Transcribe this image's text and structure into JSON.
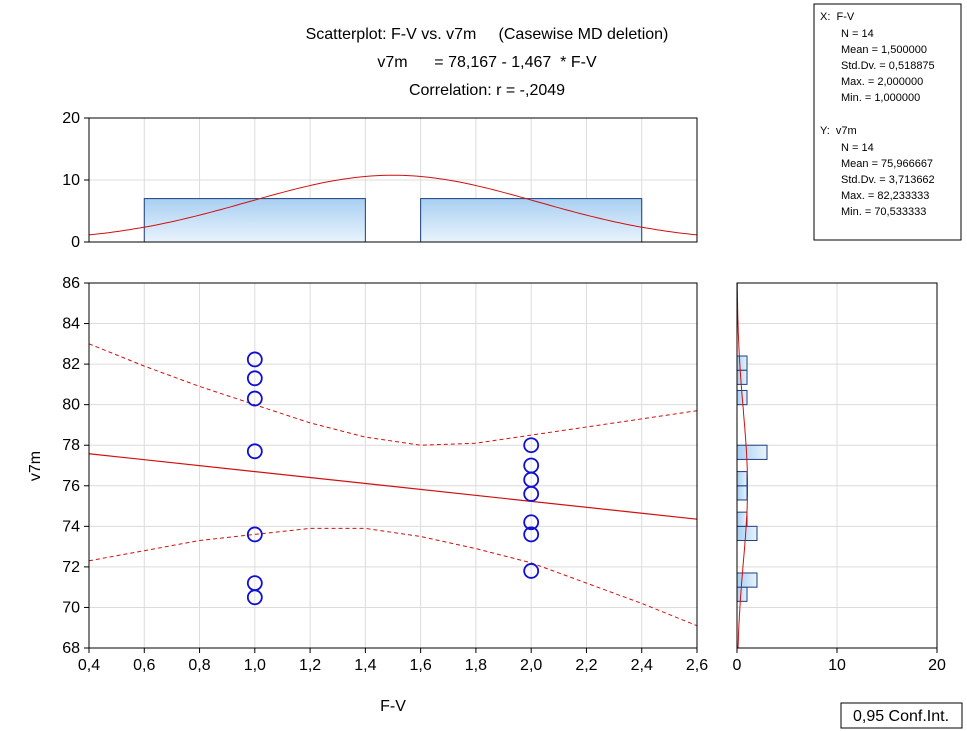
{
  "colors": {
    "point": "#1010d0",
    "line": "#d01010",
    "bar_fill_top": "#a9cff2",
    "bar_fill_bottom": "#e9f3fc",
    "bar_stroke": "#1a3f80",
    "grid": "#dcdcdc",
    "frame": "#000000"
  },
  "chart_data": {
    "type": "scatter",
    "title": "Scatterplot: F-V vs. v7m     (Casewise MD deletion)",
    "subtitle": "v7m      = 78,167 - 1,467  * F-V",
    "correlation": "Correlation: r = -,2049",
    "xlabel": "F-V",
    "ylabel": "v7m",
    "xlim": [
      0.4,
      2.6
    ],
    "ylim": [
      68,
      86
    ],
    "grid": true,
    "x_ticks": [
      "0,4",
      "0,6",
      "0,8",
      "1,0",
      "1,2",
      "1,4",
      "1,6",
      "1,8",
      "2,0",
      "2,2",
      "2,4",
      "2,6"
    ],
    "y_ticks": [
      "68",
      "70",
      "72",
      "74",
      "76",
      "78",
      "80",
      "82",
      "84",
      "86"
    ],
    "regression": {
      "intercept": 78.167,
      "slope": -1.467
    },
    "confidence_label": "0,95 Conf.Int.",
    "points": [
      {
        "x": 1.0,
        "y": 82.23
      },
      {
        "x": 1.0,
        "y": 81.3
      },
      {
        "x": 1.0,
        "y": 80.3
      },
      {
        "x": 1.0,
        "y": 77.7
      },
      {
        "x": 1.0,
        "y": 73.6
      },
      {
        "x": 1.0,
        "y": 71.2
      },
      {
        "x": 1.0,
        "y": 70.5
      },
      {
        "x": 2.0,
        "y": 78.0
      },
      {
        "x": 2.0,
        "y": 77.0
      },
      {
        "x": 2.0,
        "y": 76.3
      },
      {
        "x": 2.0,
        "y": 75.6
      },
      {
        "x": 2.0,
        "y": 74.2
      },
      {
        "x": 2.0,
        "y": 73.6
      },
      {
        "x": 2.0,
        "y": 71.8
      }
    ],
    "conf_upper": [
      {
        "x": 0.4,
        "y": 83.0
      },
      {
        "x": 0.6,
        "y": 81.9
      },
      {
        "x": 0.8,
        "y": 80.9
      },
      {
        "x": 1.0,
        "y": 80.0
      },
      {
        "x": 1.2,
        "y": 79.1
      },
      {
        "x": 1.4,
        "y": 78.4
      },
      {
        "x": 1.6,
        "y": 78.0
      },
      {
        "x": 1.8,
        "y": 78.1
      },
      {
        "x": 2.0,
        "y": 78.5
      },
      {
        "x": 2.2,
        "y": 78.9
      },
      {
        "x": 2.4,
        "y": 79.3
      },
      {
        "x": 2.6,
        "y": 79.7
      }
    ],
    "conf_lower": [
      {
        "x": 0.4,
        "y": 72.3
      },
      {
        "x": 0.6,
        "y": 72.8
      },
      {
        "x": 0.8,
        "y": 73.3
      },
      {
        "x": 1.0,
        "y": 73.6
      },
      {
        "x": 1.2,
        "y": 73.9
      },
      {
        "x": 1.4,
        "y": 73.9
      },
      {
        "x": 1.6,
        "y": 73.5
      },
      {
        "x": 1.8,
        "y": 72.9
      },
      {
        "x": 2.0,
        "y": 72.2
      },
      {
        "x": 2.2,
        "y": 71.2
      },
      {
        "x": 2.4,
        "y": 70.2
      },
      {
        "x": 2.6,
        "y": 69.1
      }
    ],
    "top_histogram": {
      "ylim": [
        0,
        20
      ],
      "y_ticks": [
        "0",
        "10",
        "20"
      ],
      "bins": [
        {
          "x0": 0.6,
          "x1": 1.4,
          "count": 7
        },
        {
          "x0": 1.6,
          "x1": 2.4,
          "count": 7
        }
      ],
      "normal": {
        "mean": 1.5,
        "sd": 0.518875,
        "n": 14,
        "binwidth": 1.0
      }
    },
    "right_histogram": {
      "xlim": [
        0,
        20
      ],
      "x_ticks": [
        "0",
        "10",
        "20"
      ],
      "bins": [
        {
          "y0": 70.3,
          "y1": 71.0,
          "count": 1
        },
        {
          "y0": 71.0,
          "y1": 71.7,
          "count": 2
        },
        {
          "y0": 73.3,
          "y1": 74.0,
          "count": 2
        },
        {
          "y0": 74.0,
          "y1": 74.7,
          "count": 1
        },
        {
          "y0": 75.3,
          "y1": 76.0,
          "count": 1
        },
        {
          "y0": 76.0,
          "y1": 76.7,
          "count": 1
        },
        {
          "y0": 77.3,
          "y1": 78.0,
          "count": 3
        },
        {
          "y0": 80.0,
          "y1": 80.7,
          "count": 1
        },
        {
          "y0": 81.0,
          "y1": 81.7,
          "count": 1
        },
        {
          "y0": 81.7,
          "y1": 82.4,
          "count": 1
        }
      ],
      "normal": {
        "mean": 75.966667,
        "sd": 3.713662,
        "n": 14,
        "binwidth": 0.7
      }
    },
    "stats_x": {
      "header": "X:  F-V",
      "lines": [
        "N = 14",
        "Mean = 1,500000",
        "Std.Dv. = 0,518875",
        "Max. = 2,000000",
        "Min. = 1,000000"
      ]
    },
    "stats_y": {
      "header": "Y:  v7m",
      "lines": [
        "N = 14",
        "Mean = 75,966667",
        "Std.Dv. = 3,713662",
        "Max. = 82,233333",
        "Min. = 70,533333"
      ]
    }
  }
}
